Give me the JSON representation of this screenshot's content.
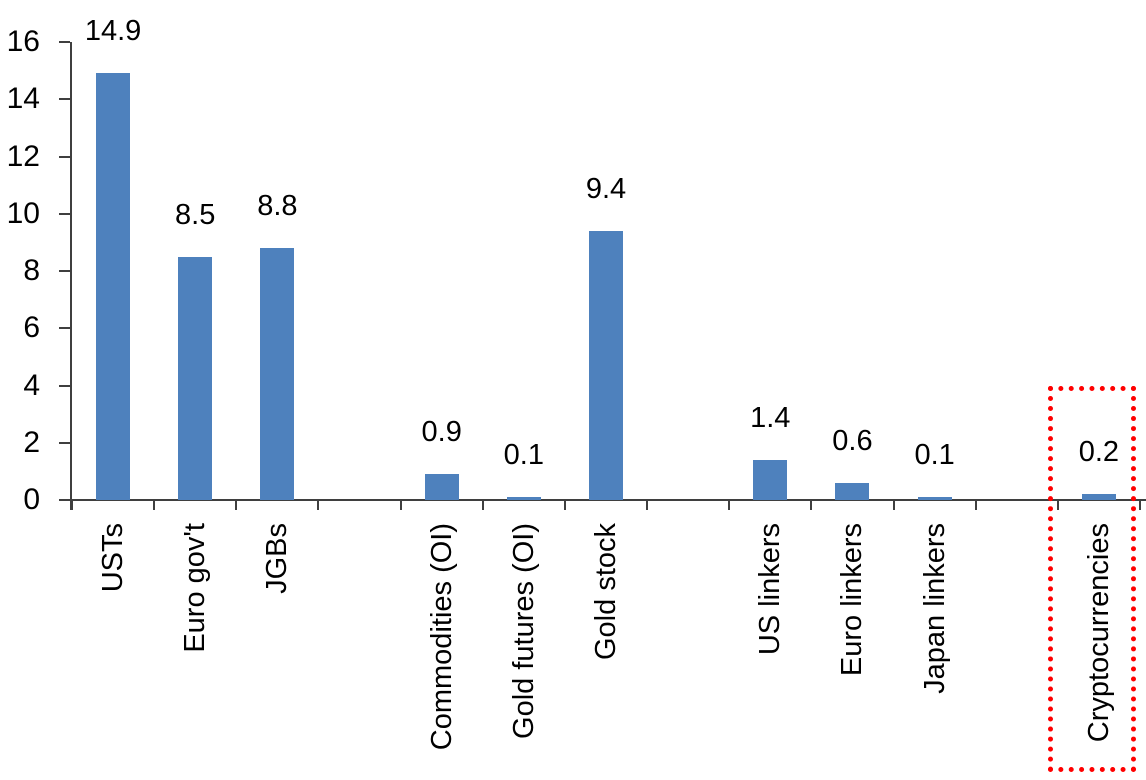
{
  "chart_data": {
    "type": "bar",
    "title": "",
    "xlabel": "",
    "ylabel": "",
    "categories": [
      "USTs",
      "Euro gov't",
      "JGBs",
      "Commodities (OI)",
      "Gold futures (OI)",
      "Gold stock",
      "US linkers",
      "Euro linkers",
      "Japan linkers",
      "Cryptocurrencies"
    ],
    "values": [
      14.9,
      8.5,
      8.8,
      0.9,
      0.1,
      9.4,
      1.4,
      0.6,
      0.1,
      0.2
    ],
    "data_labels": [
      "14.9",
      "8.5",
      "8.8",
      "0.9",
      "0.1",
      "9.4",
      "1.4",
      "0.6",
      "0.1",
      "0.2"
    ],
    "y_ticks": [
      "16",
      "14",
      "12",
      "10",
      "8",
      "6",
      "4",
      "2",
      "0"
    ],
    "y_tick_values": [
      16,
      14,
      12,
      10,
      8,
      6,
      4,
      2,
      0
    ],
    "ylim": [
      0,
      16
    ],
    "grid": false,
    "legend": false,
    "slot_indices": [
      0,
      1,
      2,
      4,
      5,
      6,
      8,
      9,
      10,
      12
    ],
    "num_slots": 13,
    "bar_color": "#4E81BD",
    "axis_color": "#3F3F3F",
    "text_color": "#000000",
    "highlight": {
      "category": "Cryptocurrencies",
      "box_color": "#FF0000",
      "border_style": "dotted"
    }
  }
}
